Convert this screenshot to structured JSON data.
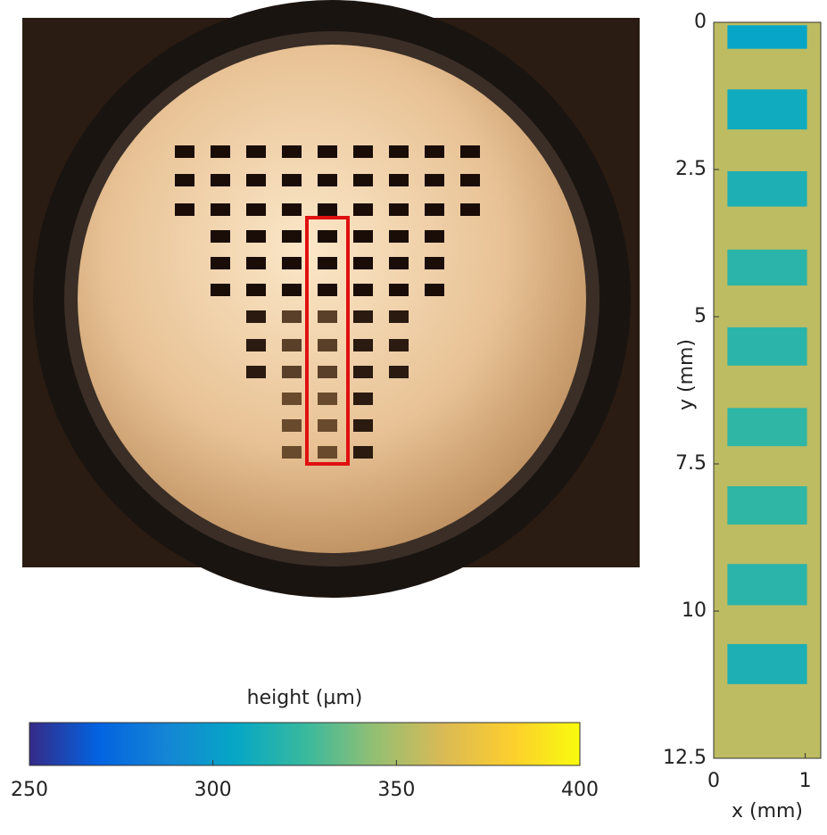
{
  "height_map": {
    "type": "heatmap",
    "xlabel": "x (mm)",
    "ylabel": "y (mm)",
    "xlim": [
      0,
      1.17
    ],
    "xticks": [
      0,
      1
    ],
    "ylim": [
      0,
      12.5
    ],
    "yticks": [
      0,
      2.5,
      5,
      7.5,
      10,
      12.5
    ],
    "background_height": 355,
    "pads": [
      {
        "x": [
          0.15,
          1.02
        ],
        "y": [
          0.05,
          0.45
        ],
        "height": 305
      },
      {
        "x": [
          0.15,
          1.02
        ],
        "y": [
          1.14,
          1.82
        ],
        "height": 310
      },
      {
        "x": [
          0.15,
          1.02
        ],
        "y": [
          2.53,
          3.13
        ],
        "height": 315
      },
      {
        "x": [
          0.15,
          1.02
        ],
        "y": [
          3.86,
          4.47
        ],
        "height": 320
      },
      {
        "x": [
          0.15,
          1.02
        ],
        "y": [
          5.18,
          5.83
        ],
        "height": 320
      },
      {
        "x": [
          0.15,
          1.02
        ],
        "y": [
          6.55,
          7.2
        ],
        "height": 322
      },
      {
        "x": [
          0.15,
          1.02
        ],
        "y": [
          7.88,
          8.53
        ],
        "height": 322
      },
      {
        "x": [
          0.15,
          1.02
        ],
        "y": [
          9.2,
          9.9
        ],
        "height": 320
      },
      {
        "x": [
          0.15,
          1.02
        ],
        "y": [
          10.56,
          11.24
        ],
        "height": 315
      }
    ]
  },
  "colorbar": {
    "label": "height (µm)",
    "lim": [
      250,
      400
    ],
    "ticks": [
      250,
      300,
      350,
      400
    ]
  }
}
